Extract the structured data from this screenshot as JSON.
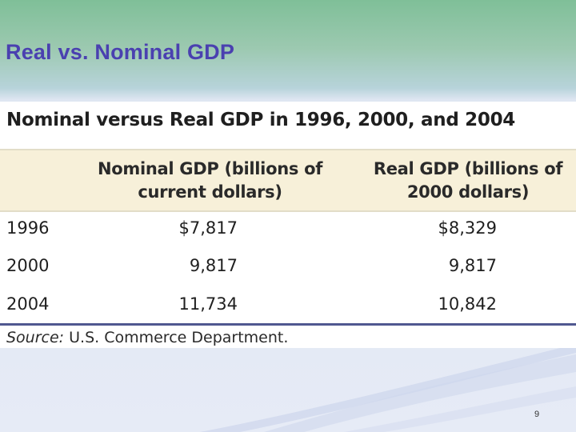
{
  "slide": {
    "title": "Real vs. Nominal GDP",
    "page_number": "9"
  },
  "table": {
    "heading": "Nominal versus Real GDP in 1996, 2000, and 2004",
    "columns": {
      "nominal_line1": "Nominal GDP (billions of",
      "nominal_line2": "current dollars)",
      "real_line1": "Real GDP (billions of",
      "real_line2": "2000 dollars)"
    },
    "rows": [
      {
        "year": "1996",
        "nominal": "$7,817",
        "real": "$8,329"
      },
      {
        "year": "2000",
        "nominal": "9,817",
        "real": "9,817"
      },
      {
        "year": "2004",
        "nominal": "11,734",
        "real": "10,842"
      }
    ],
    "source_label": "Source:",
    "source_text": " U.S. Commerce Department."
  },
  "colors": {
    "title": "#4a40b0",
    "header_band": "#f7f0d9",
    "rule": "#505890"
  }
}
